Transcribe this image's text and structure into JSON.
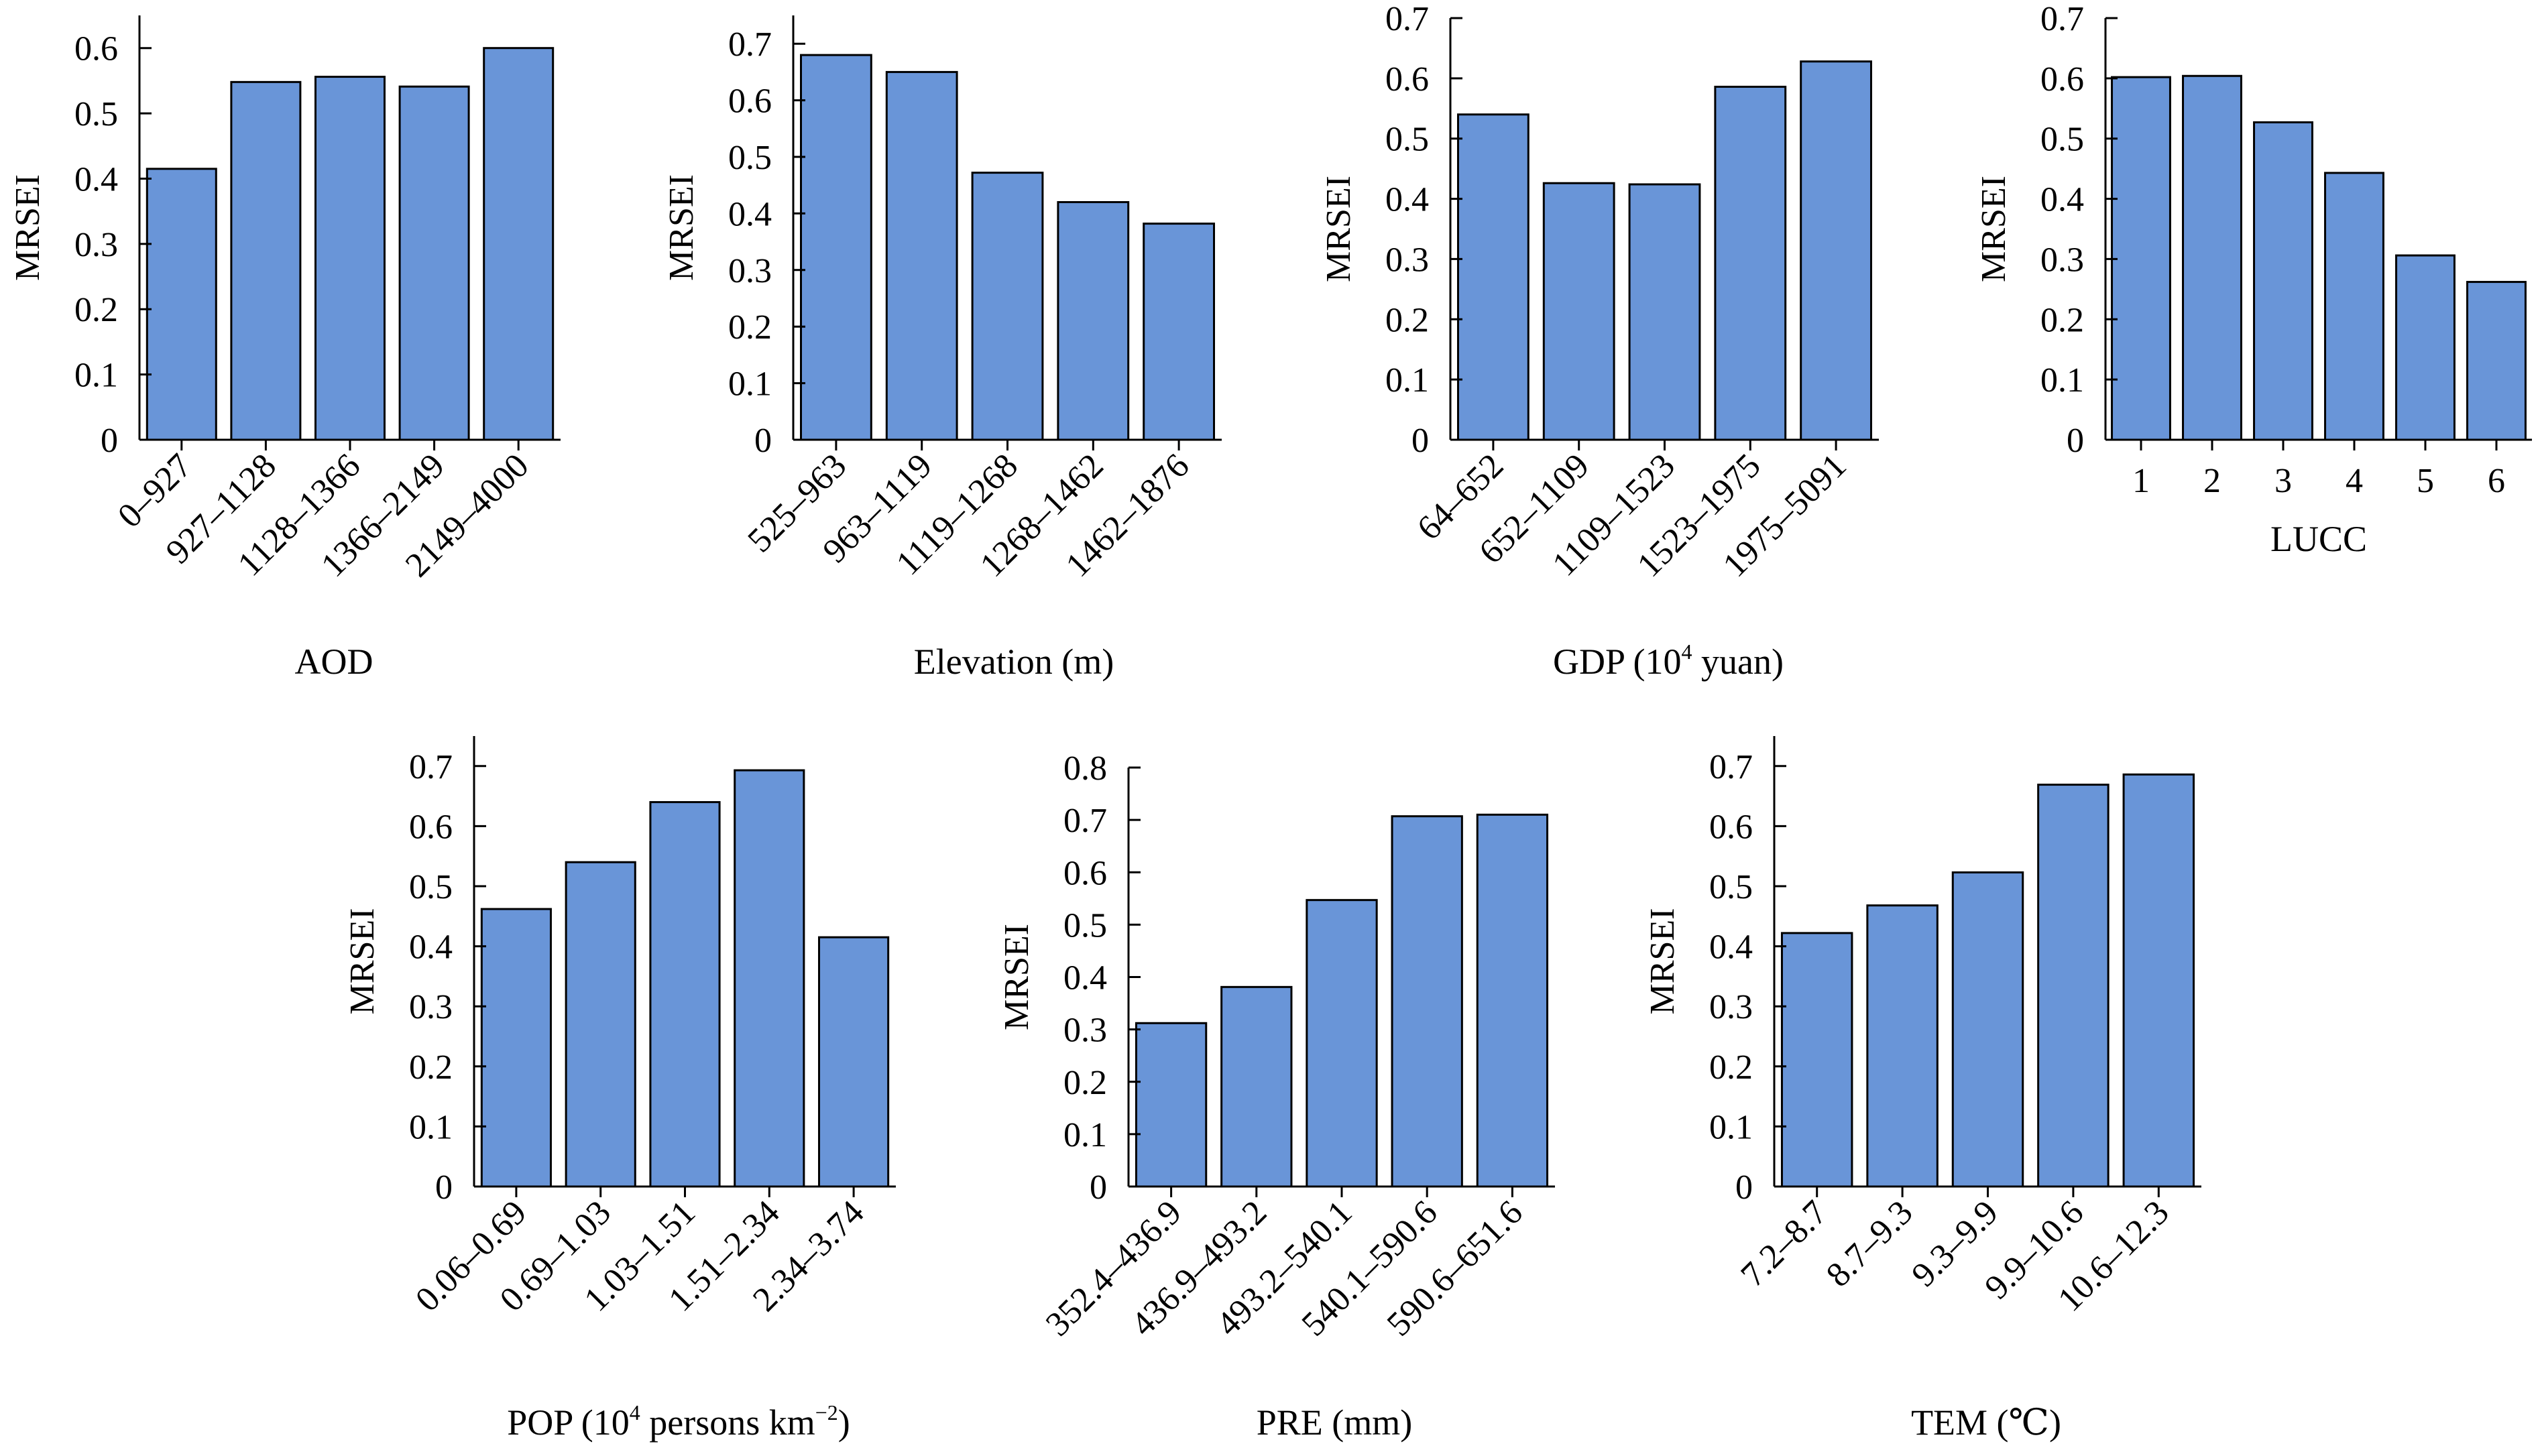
{
  "style": {
    "bar_color": "#6995d8",
    "bar_stroke": "#000000"
  },
  "chart_data": [
    {
      "type": "bar",
      "categories": [
        "0–927",
        "927–1128",
        "1128–1366",
        "1366–2149",
        "2149–4000"
      ],
      "values": [
        0.415,
        0.548,
        0.556,
        0.541,
        0.6
      ],
      "xlabel": "AOD",
      "ylabel": "MRSEI",
      "ylim": [
        0,
        0.65
      ],
      "yticks": [
        "0",
        "0.1",
        "0.2",
        "0.3",
        "0.4",
        "0.5",
        "0.6"
      ],
      "rotated_ticks": true
    },
    {
      "type": "bar",
      "categories": [
        "525–963",
        "963–1119",
        "1119–1268",
        "1268–1462",
        "1462–1876"
      ],
      "values": [
        0.68,
        0.65,
        0.472,
        0.42,
        0.382
      ],
      "xlabel": "Elevation (m)",
      "ylabel": "MRSEI",
      "ylim": [
        0,
        0.75
      ],
      "yticks": [
        "0",
        "0.1",
        "0.2",
        "0.3",
        "0.4",
        "0.5",
        "0.6",
        "0.7"
      ],
      "rotated_ticks": true
    },
    {
      "type": "bar",
      "categories": [
        "64–652",
        "652–1109",
        "1109–1523",
        "1523–1975",
        "1975–5091"
      ],
      "values": [
        0.54,
        0.426,
        0.424,
        0.586,
        0.628
      ],
      "xlabel_pre": "GDP (10",
      "xlabel_sup": "4",
      "xlabel_post": " yuan)",
      "ylabel": "MRSEI",
      "ylim": [
        0,
        0.7
      ],
      "yticks": [
        "0",
        "0.1",
        "0.2",
        "0.3",
        "0.4",
        "0.5",
        "0.6",
        "0.7"
      ],
      "rotated_ticks": true
    },
    {
      "type": "bar",
      "categories": [
        "1",
        "2",
        "3",
        "4",
        "5",
        "6"
      ],
      "values": [
        0.602,
        0.604,
        0.527,
        0.443,
        0.306,
        0.262
      ],
      "xlabel": "LUCC",
      "ylabel": "MRSEI",
      "ylim": [
        0,
        0.7
      ],
      "yticks": [
        "0",
        "0.1",
        "0.2",
        "0.3",
        "0.4",
        "0.5",
        "0.6",
        "0.7"
      ],
      "rotated_ticks": false
    },
    {
      "type": "bar",
      "categories": [
        "0.06–0.69",
        "0.69–1.03",
        "1.03–1.51",
        "1.51–2.34",
        "2.34–3.74"
      ],
      "values": [
        0.462,
        0.54,
        0.64,
        0.693,
        0.415
      ],
      "xlabel_pre": "POP (10",
      "xlabel_sup": "4",
      "xlabel_post": " persons km",
      "xlabel_sup2": "−2",
      "xlabel_post2": ")",
      "ylabel": "MRSEI",
      "ylim": [
        0,
        0.75
      ],
      "yticks": [
        "0",
        "0.1",
        "0.2",
        "0.3",
        "0.4",
        "0.5",
        "0.6",
        "0.7"
      ],
      "rotated_ticks": true
    },
    {
      "type": "bar",
      "categories": [
        "352.4–436.9",
        "436.9–493.2",
        "493.2–540.1",
        "540.1–590.6",
        "590.6–651.6"
      ],
      "values": [
        0.312,
        0.381,
        0.547,
        0.707,
        0.71
      ],
      "xlabel": "PRE (mm)",
      "ylabel": "MRSEI",
      "ylim": [
        0,
        0.8
      ],
      "yticks": [
        "0",
        "0.1",
        "0.2",
        "0.3",
        "0.4",
        "0.5",
        "0.6",
        "0.7",
        "0.8"
      ],
      "rotated_ticks": true
    },
    {
      "type": "bar",
      "categories": [
        "7.2–8.7",
        "8.7–9.3",
        "9.3–9.9",
        "9.9–10.6",
        "10.6–12.3"
      ],
      "values": [
        0.422,
        0.468,
        0.523,
        0.669,
        0.686
      ],
      "xlabel": "TEM (℃)",
      "ylabel": "MRSEI",
      "ylim": [
        0,
        0.75
      ],
      "yticks": [
        "0",
        "0.1",
        "0.2",
        "0.3",
        "0.4",
        "0.5",
        "0.6",
        "0.7"
      ],
      "rotated_ticks": true
    }
  ]
}
